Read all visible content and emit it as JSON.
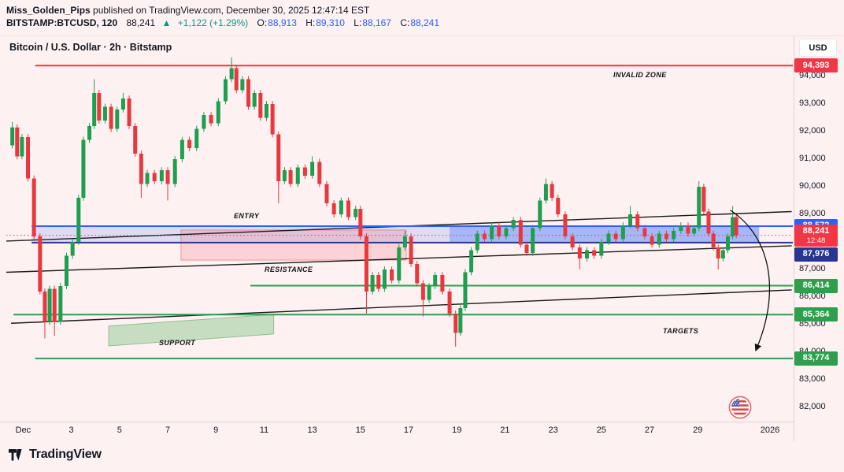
{
  "header": {
    "publisher": "Miss_Golden_Pips",
    "published_suffix": " published on TradingView.com, December 30, 2025 12:47:14 EST",
    "symbol_interval": "BITSTAMP:BTCUSD, 120",
    "last_price": "88,241",
    "change_arrow": "▲",
    "change_text": "+1,122 (+1.29%)",
    "ohlc": {
      "o_label": "O:",
      "o": "88,913",
      "h_label": "H:",
      "h": "89,310",
      "l_label": "L:",
      "l": "88,167",
      "c_label": "C:",
      "c": "88,241"
    }
  },
  "chart": {
    "legend": "Bitcoin / U.S. Dollar · 2h · Bitstamp",
    "currency_button": "USD",
    "annotations": {
      "invalid_zone": "INVALID ZONE",
      "entry": "ENTRY",
      "resistance": "RESISTANCE",
      "support": "SUPPORT",
      "targets": "TARGETS"
    }
  },
  "price_axis": {
    "ticks": [
      {
        "label": "94,000",
        "price": 94000
      },
      {
        "label": "93,000",
        "price": 93000
      },
      {
        "label": "92,000",
        "price": 92000
      },
      {
        "label": "91,000",
        "price": 91000
      },
      {
        "label": "90,000",
        "price": 90000
      },
      {
        "label": "89,000",
        "price": 89000
      },
      {
        "label": "87,000",
        "price": 87000
      },
      {
        "label": "86,000",
        "price": 86000
      },
      {
        "label": "85,000",
        "price": 85000
      },
      {
        "label": "84,000",
        "price": 84000
      },
      {
        "label": "83,000",
        "price": 83000
      },
      {
        "label": "82,000",
        "price": 82000
      }
    ],
    "labels": [
      {
        "text": "94,393",
        "price": 94393,
        "bg": "#f23645"
      },
      {
        "text": "88,572",
        "price": 88572,
        "bg": "#2962ff"
      },
      {
        "text": "88,241",
        "price": 88241,
        "bg": "#f23645",
        "countdown": "12:48"
      },
      {
        "text": "87,976",
        "price": 87976,
        "bg": "#283593"
      },
      {
        "text": "86,414",
        "price": 86414,
        "bg": "#2f9e4d"
      },
      {
        "text": "85,364",
        "price": 85364,
        "bg": "#2f9e4d"
      },
      {
        "text": "83,774",
        "price": 83774,
        "bg": "#2f9e4d"
      }
    ]
  },
  "time_axis": {
    "ticks": [
      {
        "label": "Dec",
        "day": 1
      },
      {
        "label": "3",
        "day": 3
      },
      {
        "label": "5",
        "day": 5
      },
      {
        "label": "7",
        "day": 7
      },
      {
        "label": "9",
        "day": 9
      },
      {
        "label": "11",
        "day": 11
      },
      {
        "label": "13",
        "day": 13
      },
      {
        "label": "15",
        "day": 15
      },
      {
        "label": "17",
        "day": 17
      },
      {
        "label": "19",
        "day": 19
      },
      {
        "label": "21",
        "day": 21
      },
      {
        "label": "23",
        "day": 23
      },
      {
        "label": "25",
        "day": 25
      },
      {
        "label": "27",
        "day": 27
      },
      {
        "label": "29",
        "day": 29
      },
      {
        "label": "2026",
        "day": 32
      }
    ]
  },
  "footer": {
    "brand": "TradingView"
  },
  "chart_data": {
    "type": "candlestick",
    "title": "Bitcoin / U.S. Dollar",
    "exchange": "Bitstamp",
    "interval": "2h",
    "x_unit": "day_of_december_2025",
    "x_range": [
      0.3,
      33
    ],
    "y_range": [
      81700,
      94650
    ],
    "current_price": 88241,
    "colors": {
      "up": "#1e9e4f",
      "down": "#e8383d",
      "bg": "#fdf1f2"
    },
    "waypoints_format": [
      "day",
      "close",
      "high_wick_or_null",
      "low_wick_or_null"
    ],
    "waypoints": [
      [
        0.35,
        91500,
        null,
        null
      ],
      [
        0.55,
        92150,
        92350,
        null
      ],
      [
        0.75,
        91100,
        null,
        null
      ],
      [
        0.95,
        91800,
        null,
        null
      ],
      [
        1.2,
        90300,
        null,
        null
      ],
      [
        1.45,
        88200,
        null,
        null
      ],
      [
        1.7,
        86200,
        null,
        null
      ],
      [
        1.9,
        85100,
        null,
        84500
      ],
      [
        2.1,
        86300,
        null,
        null
      ],
      [
        2.3,
        85100,
        null,
        84600
      ],
      [
        2.55,
        86400,
        null,
        null
      ],
      [
        2.8,
        87500,
        null,
        null
      ],
      [
        3.05,
        88000,
        null,
        null
      ],
      [
        3.3,
        89600,
        null,
        null
      ],
      [
        3.5,
        91700,
        null,
        null
      ],
      [
        3.75,
        92200,
        null,
        null
      ],
      [
        3.95,
        93400,
        93900,
        null
      ],
      [
        4.15,
        92400,
        null,
        null
      ],
      [
        4.4,
        92900,
        null,
        null
      ],
      [
        4.65,
        92100,
        null,
        null
      ],
      [
        4.9,
        92800,
        null,
        null
      ],
      [
        5.15,
        93200,
        93400,
        null
      ],
      [
        5.4,
        92200,
        null,
        null
      ],
      [
        5.65,
        91200,
        null,
        null
      ],
      [
        5.9,
        90100,
        null,
        89600
      ],
      [
        6.15,
        90500,
        null,
        null
      ],
      [
        6.45,
        90200,
        null,
        null
      ],
      [
        6.75,
        90600,
        null,
        null
      ],
      [
        7.0,
        90100,
        null,
        89500
      ],
      [
        7.3,
        91000,
        null,
        null
      ],
      [
        7.6,
        91700,
        null,
        null
      ],
      [
        7.9,
        91400,
        null,
        null
      ],
      [
        8.2,
        92100,
        null,
        null
      ],
      [
        8.5,
        92600,
        null,
        null
      ],
      [
        8.8,
        92300,
        null,
        null
      ],
      [
        9.1,
        93100,
        null,
        null
      ],
      [
        9.4,
        93900,
        null,
        null
      ],
      [
        9.65,
        94300,
        94700,
        null
      ],
      [
        9.85,
        93500,
        null,
        null
      ],
      [
        10.1,
        93900,
        null,
        null
      ],
      [
        10.35,
        92900,
        null,
        null
      ],
      [
        10.6,
        93400,
        null,
        null
      ],
      [
        10.85,
        92500,
        null,
        null
      ],
      [
        11.1,
        93000,
        null,
        null
      ],
      [
        11.35,
        91900,
        null,
        null
      ],
      [
        11.6,
        90200,
        null,
        89400
      ],
      [
        11.85,
        90600,
        null,
        null
      ],
      [
        12.1,
        90100,
        null,
        null
      ],
      [
        12.4,
        90700,
        null,
        null
      ],
      [
        12.7,
        90400,
        null,
        null
      ],
      [
        13.0,
        90900,
        91100,
        null
      ],
      [
        13.3,
        90100,
        null,
        null
      ],
      [
        13.6,
        89400,
        null,
        null
      ],
      [
        13.9,
        89000,
        null,
        null
      ],
      [
        14.2,
        89500,
        null,
        null
      ],
      [
        14.5,
        88900,
        null,
        null
      ],
      [
        14.8,
        89200,
        null,
        null
      ],
      [
        15.0,
        88200,
        null,
        null
      ],
      [
        15.25,
        86200,
        null,
        85400
      ],
      [
        15.5,
        86800,
        null,
        null
      ],
      [
        15.75,
        86300,
        null,
        null
      ],
      [
        16.0,
        87000,
        null,
        null
      ],
      [
        16.3,
        86600,
        null,
        null
      ],
      [
        16.6,
        87800,
        null,
        null
      ],
      [
        16.85,
        88200,
        88400,
        null
      ],
      [
        17.1,
        87200,
        null,
        null
      ],
      [
        17.35,
        86500,
        null,
        null
      ],
      [
        17.6,
        85900,
        null,
        85300
      ],
      [
        17.85,
        86400,
        null,
        null
      ],
      [
        18.1,
        86800,
        null,
        null
      ],
      [
        18.4,
        86200,
        null,
        null
      ],
      [
        18.7,
        85400,
        null,
        null
      ],
      [
        18.95,
        84700,
        null,
        84200
      ],
      [
        19.15,
        85600,
        null,
        null
      ],
      [
        19.35,
        86900,
        null,
        null
      ],
      [
        19.6,
        87700,
        null,
        null
      ],
      [
        19.85,
        88300,
        null,
        null
      ],
      [
        20.15,
        88100,
        null,
        null
      ],
      [
        20.45,
        88600,
        null,
        null
      ],
      [
        20.75,
        88200,
        null,
        null
      ],
      [
        21.05,
        88500,
        null,
        null
      ],
      [
        21.35,
        88800,
        null,
        null
      ],
      [
        21.65,
        87900,
        null,
        null
      ],
      [
        21.9,
        87600,
        null,
        null
      ],
      [
        22.15,
        88500,
        null,
        null
      ],
      [
        22.45,
        89500,
        null,
        null
      ],
      [
        22.7,
        90100,
        90300,
        null
      ],
      [
        22.95,
        89600,
        null,
        null
      ],
      [
        23.2,
        89000,
        null,
        null
      ],
      [
        23.5,
        88200,
        null,
        null
      ],
      [
        23.8,
        87800,
        null,
        null
      ],
      [
        24.1,
        87400,
        null,
        87000
      ],
      [
        24.4,
        87700,
        null,
        null
      ],
      [
        24.7,
        87500,
        null,
        null
      ],
      [
        25.0,
        88000,
        null,
        null
      ],
      [
        25.3,
        88300,
        null,
        null
      ],
      [
        25.6,
        88100,
        null,
        null
      ],
      [
        25.9,
        88600,
        null,
        null
      ],
      [
        26.2,
        89000,
        89300,
        null
      ],
      [
        26.5,
        88500,
        null,
        null
      ],
      [
        26.8,
        88200,
        null,
        null
      ],
      [
        27.1,
        87900,
        null,
        null
      ],
      [
        27.4,
        88300,
        null,
        null
      ],
      [
        27.7,
        88100,
        null,
        null
      ],
      [
        28.0,
        88400,
        null,
        null
      ],
      [
        28.3,
        88600,
        null,
        null
      ],
      [
        28.6,
        88300,
        null,
        null
      ],
      [
        28.85,
        88500,
        null,
        null
      ],
      [
        29.05,
        90000,
        90200,
        null
      ],
      [
        29.25,
        89100,
        null,
        null
      ],
      [
        29.45,
        88300,
        null,
        null
      ],
      [
        29.65,
        87800,
        null,
        null
      ],
      [
        29.85,
        87400,
        null,
        87000
      ],
      [
        30.05,
        87700,
        null,
        null
      ],
      [
        30.25,
        88200,
        null,
        null
      ],
      [
        30.45,
        88900,
        89300,
        null
      ],
      [
        30.6,
        88241,
        null,
        null
      ]
    ],
    "levels": [
      {
        "name": "invalid-zone-line",
        "price": 94393,
        "color": "#f23645",
        "t1": 1.5,
        "t2": 32.95
      },
      {
        "name": "entry-zone-top",
        "price": 88572,
        "color": "#2962ff",
        "t1": 1.35,
        "t2": 32.95
      },
      {
        "name": "entry-zone-bottom",
        "price": 87976,
        "color": "#283593",
        "t1": 1.35,
        "t2": 32.95
      },
      {
        "name": "target-1",
        "price": 86414,
        "color": "#2f9e4d",
        "t1": 10.43,
        "t2": 32.95
      },
      {
        "name": "target-2",
        "price": 85364,
        "color": "#2f9e4d",
        "t1": 0.6,
        "t2": 32.95
      },
      {
        "name": "target-3",
        "price": 83774,
        "color": "#2f9e4d",
        "t1": 1.5,
        "t2": 32.95
      },
      {
        "name": "last-price-line",
        "price": 88241,
        "color": "#f23645",
        "t1": 0.3,
        "t2": 32.95,
        "style": "dotted"
      }
    ],
    "zones": [
      {
        "name": "entry-zone",
        "t1": 1.35,
        "t2": 31.55,
        "p_top": 88572,
        "p_bottom": 87976,
        "fill": "rgba(41,98,255,0.15)"
      },
      {
        "name": "resistance-zone",
        "t1": 7.55,
        "t2": 16.9,
        "p_top": 88430,
        "p_bottom": 87340,
        "fill": "rgba(242,54,69,0.16)",
        "stroke": "rgba(242,54,69,0.45)"
      },
      {
        "name": "entry-zone-active",
        "t1": 18.7,
        "t2": 31.55,
        "p_top": 88572,
        "p_bottom": 87976,
        "fill": "rgba(41,98,255,0.30)"
      },
      {
        "name": "support-zone",
        "t1": 4.55,
        "t2": 11.4,
        "p_top_left": 84950,
        "p_top_right": 85370,
        "p_bottom_left": 84230,
        "p_bottom_right": 84660,
        "fill": "rgba(76,175,80,0.30)",
        "stroke": "rgba(56,142,60,0.45)"
      }
    ],
    "trendlines": [
      {
        "name": "channel-upper",
        "t1": 0.3,
        "p1": 88030,
        "t2": 32.9,
        "p2": 89100,
        "color": "#1a1a1a"
      },
      {
        "name": "channel-middle",
        "t1": 0.3,
        "p1": 86900,
        "t2": 32.9,
        "p2": 87860,
        "color": "#1a1a1a"
      },
      {
        "name": "channel-lower",
        "t1": 0.5,
        "p1": 85050,
        "t2": 32.9,
        "p2": 86260,
        "color": "#1a1a1a"
      }
    ],
    "arrow": {
      "name": "target-arrow",
      "t1": 30.35,
      "p1": 89150,
      "t2": 31.45,
      "p2": 84150,
      "color": "#111111"
    }
  }
}
